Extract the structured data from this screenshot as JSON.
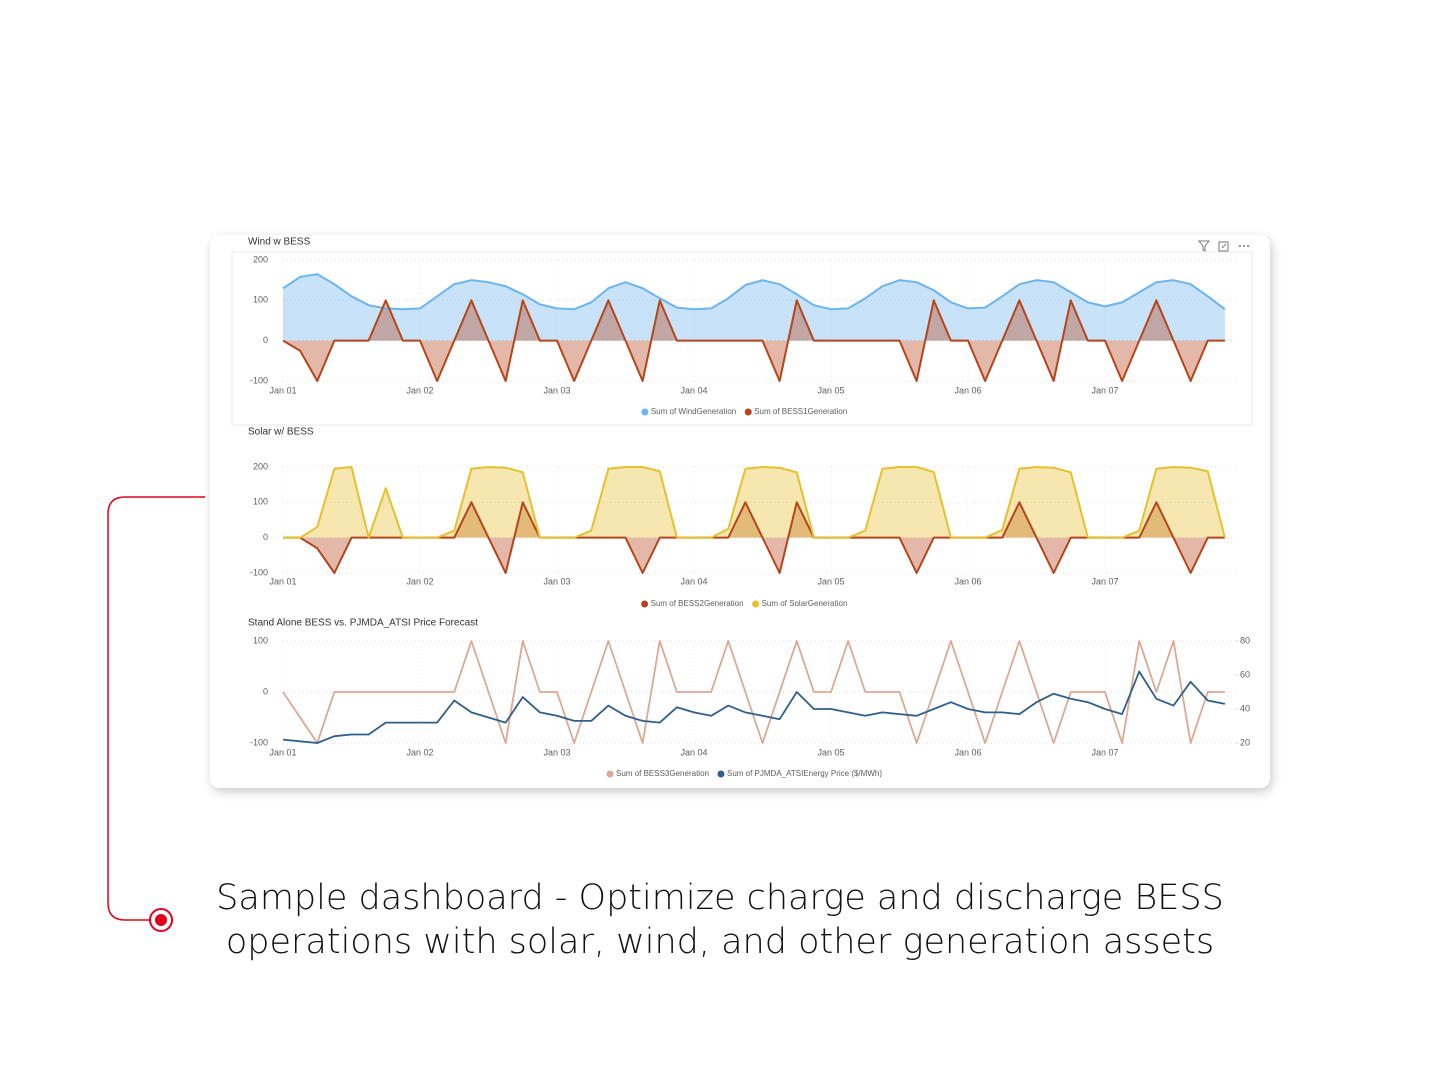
{
  "chart_data": [
    {
      "type": "area",
      "title": "Wind w BESS",
      "grid": true,
      "categories": [
        "Jan 01",
        null,
        null,
        null,
        null,
        null,
        null,
        null,
        "Jan 02",
        null,
        null,
        null,
        null,
        null,
        null,
        null,
        "Jan 03",
        null,
        null,
        null,
        null,
        null,
        null,
        null,
        "Jan 04",
        null,
        null,
        null,
        null,
        null,
        null,
        null,
        "Jan 05",
        null,
        null,
        null,
        null,
        null,
        null,
        null,
        "Jan 06",
        null,
        null,
        null,
        null,
        null,
        null,
        null,
        "Jan 07",
        null,
        null,
        null,
        null,
        null,
        null,
        null
      ],
      "ylim": [
        -100,
        200
      ],
      "yticks": [
        -100,
        0,
        100,
        200
      ],
      "series": [
        {
          "name": "Sum of WindGeneration",
          "color": "#6cb4f0",
          "values": [
            130,
            158,
            165,
            140,
            110,
            88,
            80,
            78,
            80,
            110,
            140,
            150,
            145,
            135,
            115,
            90,
            80,
            78,
            95,
            130,
            145,
            130,
            105,
            82,
            78,
            80,
            105,
            138,
            150,
            140,
            115,
            88,
            78,
            80,
            105,
            135,
            150,
            145,
            125,
            95,
            80,
            82,
            110,
            140,
            150,
            145,
            120,
            95,
            85,
            95,
            120,
            145,
            150,
            140,
            110,
            78
          ]
        },
        {
          "name": "Sum of BESS1Generation",
          "color": "#b5451b",
          "values": [
            0,
            -25,
            -100,
            0,
            0,
            0,
            100,
            0,
            0,
            -100,
            0,
            100,
            0,
            -100,
            100,
            0,
            0,
            -100,
            0,
            100,
            0,
            -100,
            100,
            0,
            0,
            0,
            0,
            0,
            0,
            -100,
            100,
            0,
            0,
            0,
            0,
            0,
            0,
            -100,
            100,
            0,
            0,
            -100,
            0,
            100,
            0,
            -100,
            100,
            0,
            0,
            -100,
            0,
            100,
            0,
            -100,
            0,
            0
          ]
        }
      ]
    },
    {
      "type": "area",
      "title": "Solar w/ BESS",
      "grid": true,
      "categories": [
        "Jan 01",
        null,
        null,
        null,
        null,
        null,
        null,
        null,
        "Jan 02",
        null,
        null,
        null,
        null,
        null,
        null,
        null,
        "Jan 03",
        null,
        null,
        null,
        null,
        null,
        null,
        null,
        "Jan 04",
        null,
        null,
        null,
        null,
        null,
        null,
        null,
        "Jan 05",
        null,
        null,
        null,
        null,
        null,
        null,
        null,
        "Jan 06",
        null,
        null,
        null,
        null,
        null,
        null,
        null,
        "Jan 07",
        null,
        null,
        null,
        null,
        null,
        null,
        null
      ],
      "ylim": [
        -100,
        200
      ],
      "yticks": [
        -100,
        0,
        100,
        200
      ],
      "series": [
        {
          "name": "Sum of BESS2Generation",
          "color": "#b5451b",
          "values": [
            0,
            0,
            -30,
            -100,
            0,
            0,
            0,
            0,
            0,
            0,
            0,
            100,
            0,
            -100,
            100,
            0,
            0,
            0,
            0,
            0,
            0,
            -100,
            0,
            0,
            0,
            0,
            0,
            100,
            0,
            -100,
            100,
            0,
            0,
            0,
            0,
            0,
            0,
            -100,
            0,
            0,
            0,
            0,
            0,
            100,
            0,
            -100,
            0,
            0,
            0,
            0,
            0,
            100,
            0,
            -100,
            0,
            0
          ]
        },
        {
          "name": "Sum of SolarGeneration",
          "color": "#e6c02e",
          "values": [
            0,
            0,
            30,
            195,
            200,
            0,
            140,
            0,
            0,
            0,
            20,
            195,
            200,
            198,
            185,
            0,
            0,
            0,
            20,
            195,
            200,
            200,
            188,
            0,
            0,
            0,
            25,
            195,
            200,
            198,
            185,
            0,
            0,
            0,
            20,
            195,
            200,
            200,
            186,
            0,
            0,
            0,
            22,
            195,
            200,
            198,
            185,
            0,
            0,
            0,
            20,
            195,
            200,
            198,
            188,
            0
          ]
        }
      ]
    },
    {
      "type": "line",
      "title": "Stand Alone BESS vs. PJMDA_ATSI Price Forecast",
      "grid": true,
      "categories": [
        "Jan 01",
        null,
        null,
        null,
        null,
        null,
        null,
        null,
        "Jan 02",
        null,
        null,
        null,
        null,
        null,
        null,
        null,
        "Jan 03",
        null,
        null,
        null,
        null,
        null,
        null,
        null,
        "Jan 04",
        null,
        null,
        null,
        null,
        null,
        null,
        null,
        "Jan 05",
        null,
        null,
        null,
        null,
        null,
        null,
        null,
        "Jan 06",
        null,
        null,
        null,
        null,
        null,
        null,
        null,
        "Jan 07",
        null,
        null,
        null,
        null,
        null,
        null,
        null
      ],
      "ylim": [
        -100,
        100
      ],
      "yticks": [
        -100,
        0,
        100
      ],
      "y2lim": [
        20,
        80
      ],
      "y2ticks": [
        20,
        40,
        60,
        80
      ],
      "series": [
        {
          "name": "Sum of BESS3Generation",
          "color": "#dca894",
          "values": [
            0,
            -50,
            -100,
            0,
            0,
            0,
            0,
            0,
            0,
            0,
            0,
            100,
            0,
            -100,
            100,
            0,
            0,
            -100,
            0,
            100,
            0,
            -100,
            100,
            0,
            0,
            0,
            100,
            0,
            -100,
            0,
            100,
            0,
            0,
            100,
            0,
            0,
            0,
            -100,
            0,
            100,
            0,
            -100,
            0,
            100,
            0,
            -100,
            0,
            0,
            0,
            -100,
            100,
            0,
            100,
            -100,
            0,
            0
          ]
        },
        {
          "name": "Sum of PJMDA_ATSIEnergy Price ($/MWh)",
          "color": "#2f5f8a",
          "axis": "y2",
          "values": [
            22,
            21,
            20,
            24,
            25,
            25,
            32,
            32,
            32,
            32,
            45,
            38,
            35,
            32,
            47,
            38,
            36,
            33,
            33,
            42,
            36,
            33,
            32,
            41,
            38,
            36,
            42,
            38,
            36,
            34,
            50,
            40,
            40,
            38,
            36,
            38,
            37,
            36,
            40,
            44,
            40,
            38,
            38,
            37,
            44,
            49,
            46,
            44,
            40,
            37,
            62,
            46,
            42,
            56,
            45,
            43
          ]
        }
      ]
    }
  ],
  "caption": "Sample dashboard - Optimize charge and discharge BESS operations with solar, wind, and other generation assets"
}
